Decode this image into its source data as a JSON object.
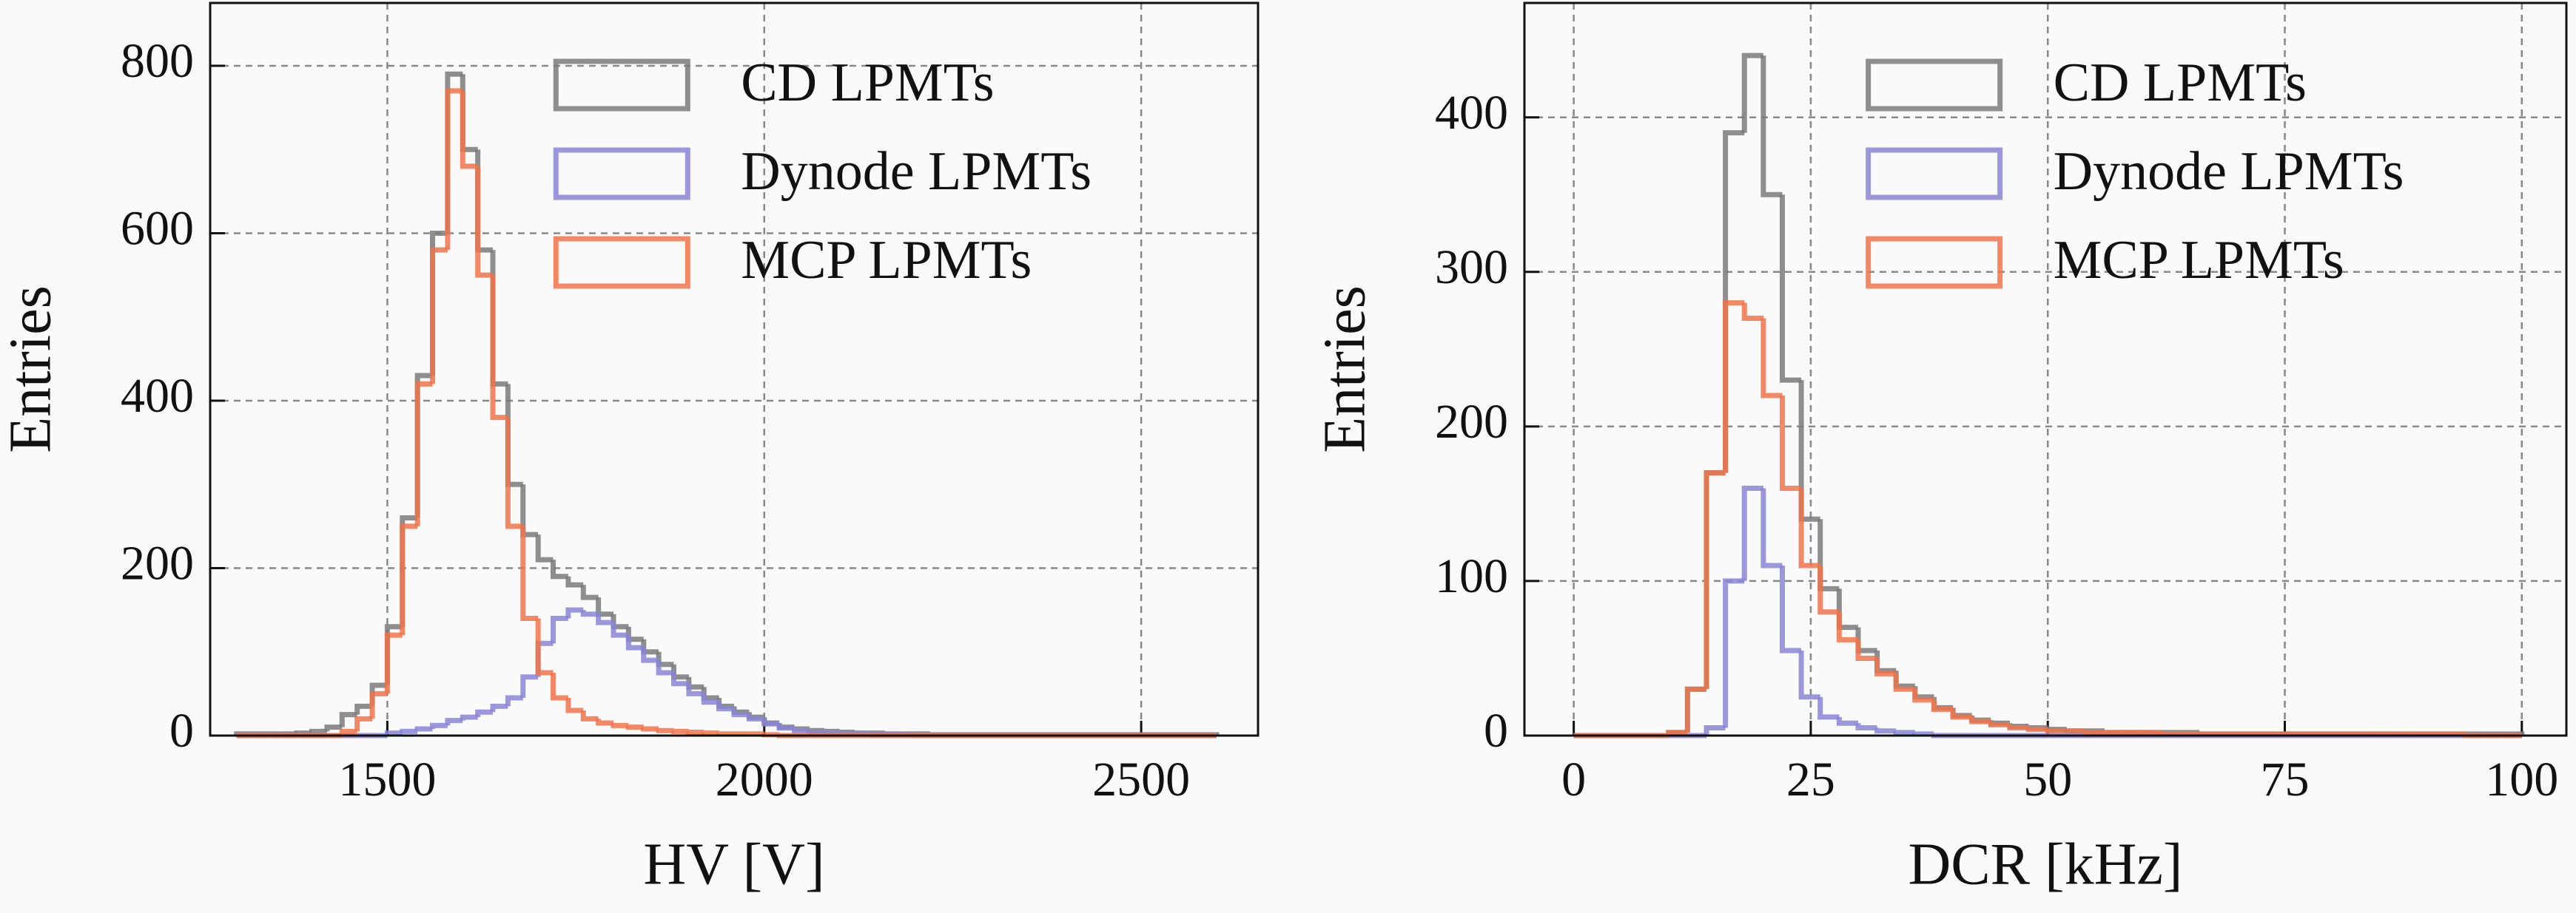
{
  "chart_data": [
    {
      "type": "histogram",
      "xlabel": "HV [V]",
      "ylabel": "Entries",
      "xlim": [
        1265,
        2655
      ],
      "ylim": [
        0,
        875
      ],
      "xticks": [
        1500,
        2000,
        2500
      ],
      "yticks": [
        0,
        200,
        400,
        600,
        800
      ],
      "grid": true,
      "legend": "upper right",
      "bins": [
        1300,
        1320,
        1340,
        1360,
        1380,
        1400,
        1420,
        1440,
        1460,
        1480,
        1500,
        1520,
        1540,
        1560,
        1580,
        1600,
        1620,
        1640,
        1660,
        1680,
        1700,
        1720,
        1740,
        1760,
        1780,
        1800,
        1820,
        1840,
        1860,
        1880,
        1900,
        1920,
        1940,
        1960,
        1980,
        2000,
        2020,
        2040,
        2060,
        2080,
        2100,
        2120,
        2140,
        2160,
        2180,
        2200,
        2220,
        2240,
        2260,
        2280,
        2300,
        2320,
        2340,
        2360,
        2380,
        2400,
        2420,
        2440,
        2460,
        2480,
        2500,
        2520,
        2540,
        2560,
        2580,
        2600
      ],
      "series": [
        {
          "name": "CD LPMTs",
          "color": "#7a7a7a",
          "values": [
            2,
            2,
            2,
            2,
            3,
            5,
            10,
            25,
            35,
            60,
            130,
            260,
            430,
            600,
            790,
            700,
            580,
            420,
            300,
            240,
            210,
            190,
            180,
            165,
            145,
            130,
            115,
            100,
            85,
            70,
            58,
            45,
            35,
            28,
            22,
            15,
            10,
            8,
            6,
            5,
            4,
            3,
            3,
            2,
            2,
            2,
            1,
            1,
            1,
            1,
            1,
            1,
            1,
            1,
            1,
            1,
            1,
            1,
            1,
            1,
            1,
            1,
            1,
            1,
            1
          ]
        },
        {
          "name": "Dynode LPMTs",
          "color": "#8b84d7",
          "values": [
            0,
            0,
            0,
            0,
            0,
            0,
            0,
            0,
            0,
            0,
            3,
            5,
            8,
            12,
            18,
            22,
            28,
            35,
            45,
            70,
            110,
            140,
            150,
            145,
            135,
            120,
            105,
            90,
            75,
            62,
            50,
            40,
            32,
            25,
            20,
            14,
            9,
            6,
            4,
            3,
            2,
            2,
            1,
            1,
            1,
            0,
            0,
            0,
            0,
            0,
            0,
            0,
            0,
            0,
            0,
            0,
            0,
            0,
            0,
            0,
            0,
            0,
            0,
            0,
            0
          ]
        },
        {
          "name": "MCP LPMTs",
          "color": "#f0734a",
          "values": [
            0,
            0,
            0,
            0,
            0,
            0,
            0,
            5,
            20,
            50,
            120,
            250,
            420,
            580,
            770,
            680,
            550,
            380,
            250,
            140,
            75,
            45,
            30,
            20,
            15,
            12,
            10,
            8,
            6,
            5,
            4,
            3,
            2,
            2,
            2,
            1,
            0,
            0,
            0,
            0,
            0,
            0,
            0,
            0,
            0,
            0,
            0,
            0,
            0,
            0,
            0,
            0,
            0,
            0,
            0,
            0,
            0,
            0,
            0,
            0,
            0,
            0,
            0,
            0,
            0
          ]
        }
      ]
    },
    {
      "type": "histogram",
      "xlabel": "DCR [kHz]",
      "ylabel": "Entries",
      "xlim": [
        -5.2,
        104.7
      ],
      "ylim": [
        0,
        474
      ],
      "xticks": [
        0,
        25,
        50,
        75,
        100
      ],
      "yticks": [
        0,
        100,
        200,
        300,
        400
      ],
      "grid": true,
      "legend": "upper right",
      "bins": [
        0,
        2,
        4,
        6,
        8,
        10,
        12,
        14,
        16,
        18,
        20,
        22,
        24,
        26,
        28,
        30,
        32,
        34,
        36,
        38,
        40,
        42,
        44,
        46,
        48,
        50,
        52,
        54,
        56,
        58,
        60,
        62,
        64,
        66,
        68,
        70,
        72,
        74,
        76,
        78,
        80,
        82,
        84,
        86,
        88,
        90,
        92,
        94,
        96,
        98,
        100
      ],
      "series": [
        {
          "name": "CD LPMTs",
          "color": "#7a7a7a",
          "values": [
            0,
            0,
            0,
            0,
            0,
            2,
            30,
            170,
            390,
            440,
            350,
            230,
            140,
            95,
            70,
            55,
            42,
            32,
            25,
            18,
            13,
            10,
            8,
            6,
            5,
            4,
            3,
            3,
            2,
            2,
            2,
            2,
            2,
            1,
            1,
            1,
            1,
            1,
            1,
            1,
            1,
            1,
            1,
            1,
            1,
            1,
            1,
            1,
            1,
            1
          ]
        },
        {
          "name": "Dynode LPMTs",
          "color": "#8b84d7",
          "values": [
            0,
            0,
            0,
            0,
            0,
            0,
            0,
            5,
            100,
            160,
            110,
            55,
            25,
            12,
            8,
            5,
            3,
            2,
            1,
            0,
            0,
            0,
            0,
            0,
            0,
            0,
            0,
            0,
            0,
            0,
            0,
            0,
            0,
            0,
            0,
            0,
            0,
            0,
            0,
            0,
            0,
            0,
            0,
            0,
            0,
            0,
            0,
            0,
            0,
            0
          ]
        },
        {
          "name": "MCP LPMTs",
          "color": "#f0734a",
          "values": [
            0,
            0,
            0,
            0,
            0,
            2,
            30,
            170,
            280,
            270,
            220,
            160,
            110,
            80,
            62,
            50,
            40,
            30,
            23,
            17,
            12,
            9,
            7,
            5,
            4,
            3,
            3,
            2,
            2,
            2,
            2,
            1,
            1,
            1,
            1,
            1,
            1,
            1,
            1,
            1,
            1,
            1,
            1,
            1,
            1,
            1,
            1,
            0,
            0,
            0
          ]
        }
      ]
    }
  ]
}
